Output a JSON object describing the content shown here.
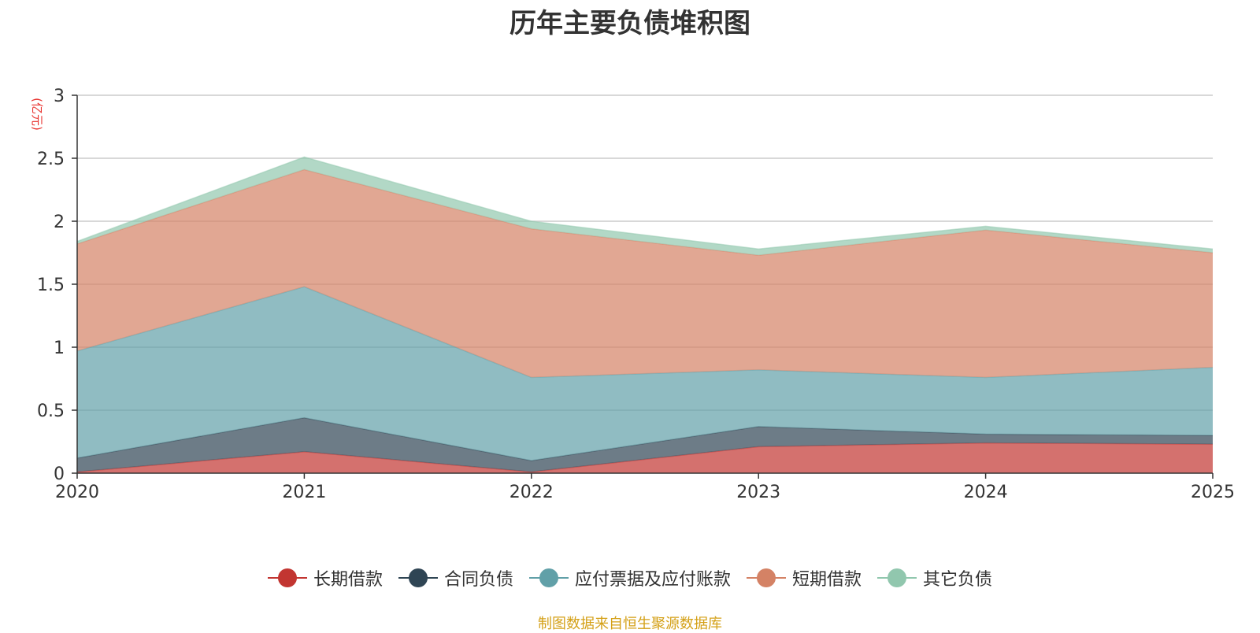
{
  "chart_data": {
    "type": "area",
    "stacked": true,
    "title": "历年主要负债堆积图",
    "unit_label": "(亿元)",
    "categories": [
      "2020",
      "2021",
      "2022",
      "2023",
      "2024",
      "2025"
    ],
    "ylim": [
      0,
      3
    ],
    "y_ticks": [
      "0",
      "0.5",
      "1",
      "1.5",
      "2",
      "2.5",
      "3"
    ],
    "grid": true,
    "legend_position": "bottom-center",
    "series": [
      {
        "name": "长期借款",
        "color": "#c23531",
        "values": [
          0.01,
          0.17,
          0.01,
          0.21,
          0.24,
          0.23
        ]
      },
      {
        "name": "合同负债",
        "color": "#2f4554",
        "values": [
          0.11,
          0.27,
          0.09,
          0.16,
          0.07,
          0.07
        ]
      },
      {
        "name": "应付票据及应付账款",
        "color": "#61a0a8",
        "values": [
          0.85,
          1.04,
          0.66,
          0.45,
          0.45,
          0.54
        ]
      },
      {
        "name": "短期借款",
        "color": "#d48265",
        "values": [
          0.85,
          0.93,
          1.18,
          0.91,
          1.17,
          0.91
        ]
      },
      {
        "name": "其它负债",
        "color": "#91c7ae",
        "values": [
          0.02,
          0.1,
          0.06,
          0.05,
          0.03,
          0.03
        ]
      }
    ],
    "source": "制图数据来自恒生聚源数据库"
  }
}
